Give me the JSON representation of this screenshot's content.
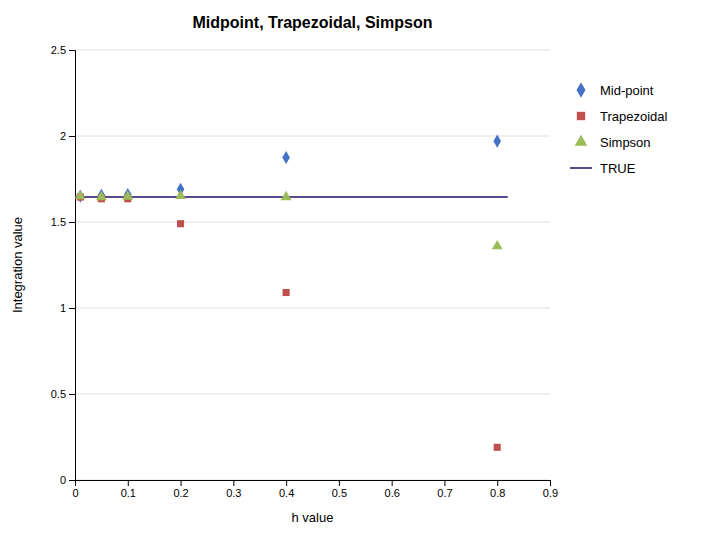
{
  "chart_data": {
    "type": "scatter",
    "title": "Midpoint, Trapezoidal, Simpson",
    "xlabel": "h value",
    "ylabel": "Integration value",
    "xlim": [
      0,
      0.9
    ],
    "ylim": [
      0,
      2.5
    ],
    "xticks": [
      0,
      0.1,
      0.2,
      0.3,
      0.4,
      0.5,
      0.6,
      0.7,
      0.8,
      0.9
    ],
    "yticks": [
      0,
      0.5,
      1,
      1.5,
      2,
      2.5
    ],
    "grid": "y",
    "legend": "right",
    "series": [
      {
        "name": "Mid-point",
        "type": "scatter",
        "marker": "diamond",
        "color": "#4472C4",
        "x": [
          0.01,
          0.05,
          0.1,
          0.2,
          0.4,
          0.8
        ],
        "values": [
          1.65,
          1.655,
          1.66,
          1.69,
          1.875,
          1.97
        ]
      },
      {
        "name": "Trapezoidal",
        "type": "scatter",
        "marker": "square",
        "color": "#C0504D",
        "x": [
          0.01,
          0.05,
          0.1,
          0.2,
          0.4,
          0.8
        ],
        "values": [
          1.645,
          1.635,
          1.635,
          1.49,
          1.09,
          0.19
        ]
      },
      {
        "name": "Simpson",
        "type": "scatter",
        "marker": "triangle",
        "color": "#9BBB59",
        "x": [
          0.01,
          0.05,
          0.1,
          0.2,
          0.4,
          0.8
        ],
        "values": [
          1.65,
          1.645,
          1.648,
          1.652,
          1.645,
          1.36
        ]
      },
      {
        "name": "TRUE",
        "type": "line",
        "line_style": "solid",
        "color": "#5B4A8A",
        "x": [
          0.0,
          0.82
        ],
        "values": [
          1.646,
          1.646
        ]
      }
    ]
  }
}
